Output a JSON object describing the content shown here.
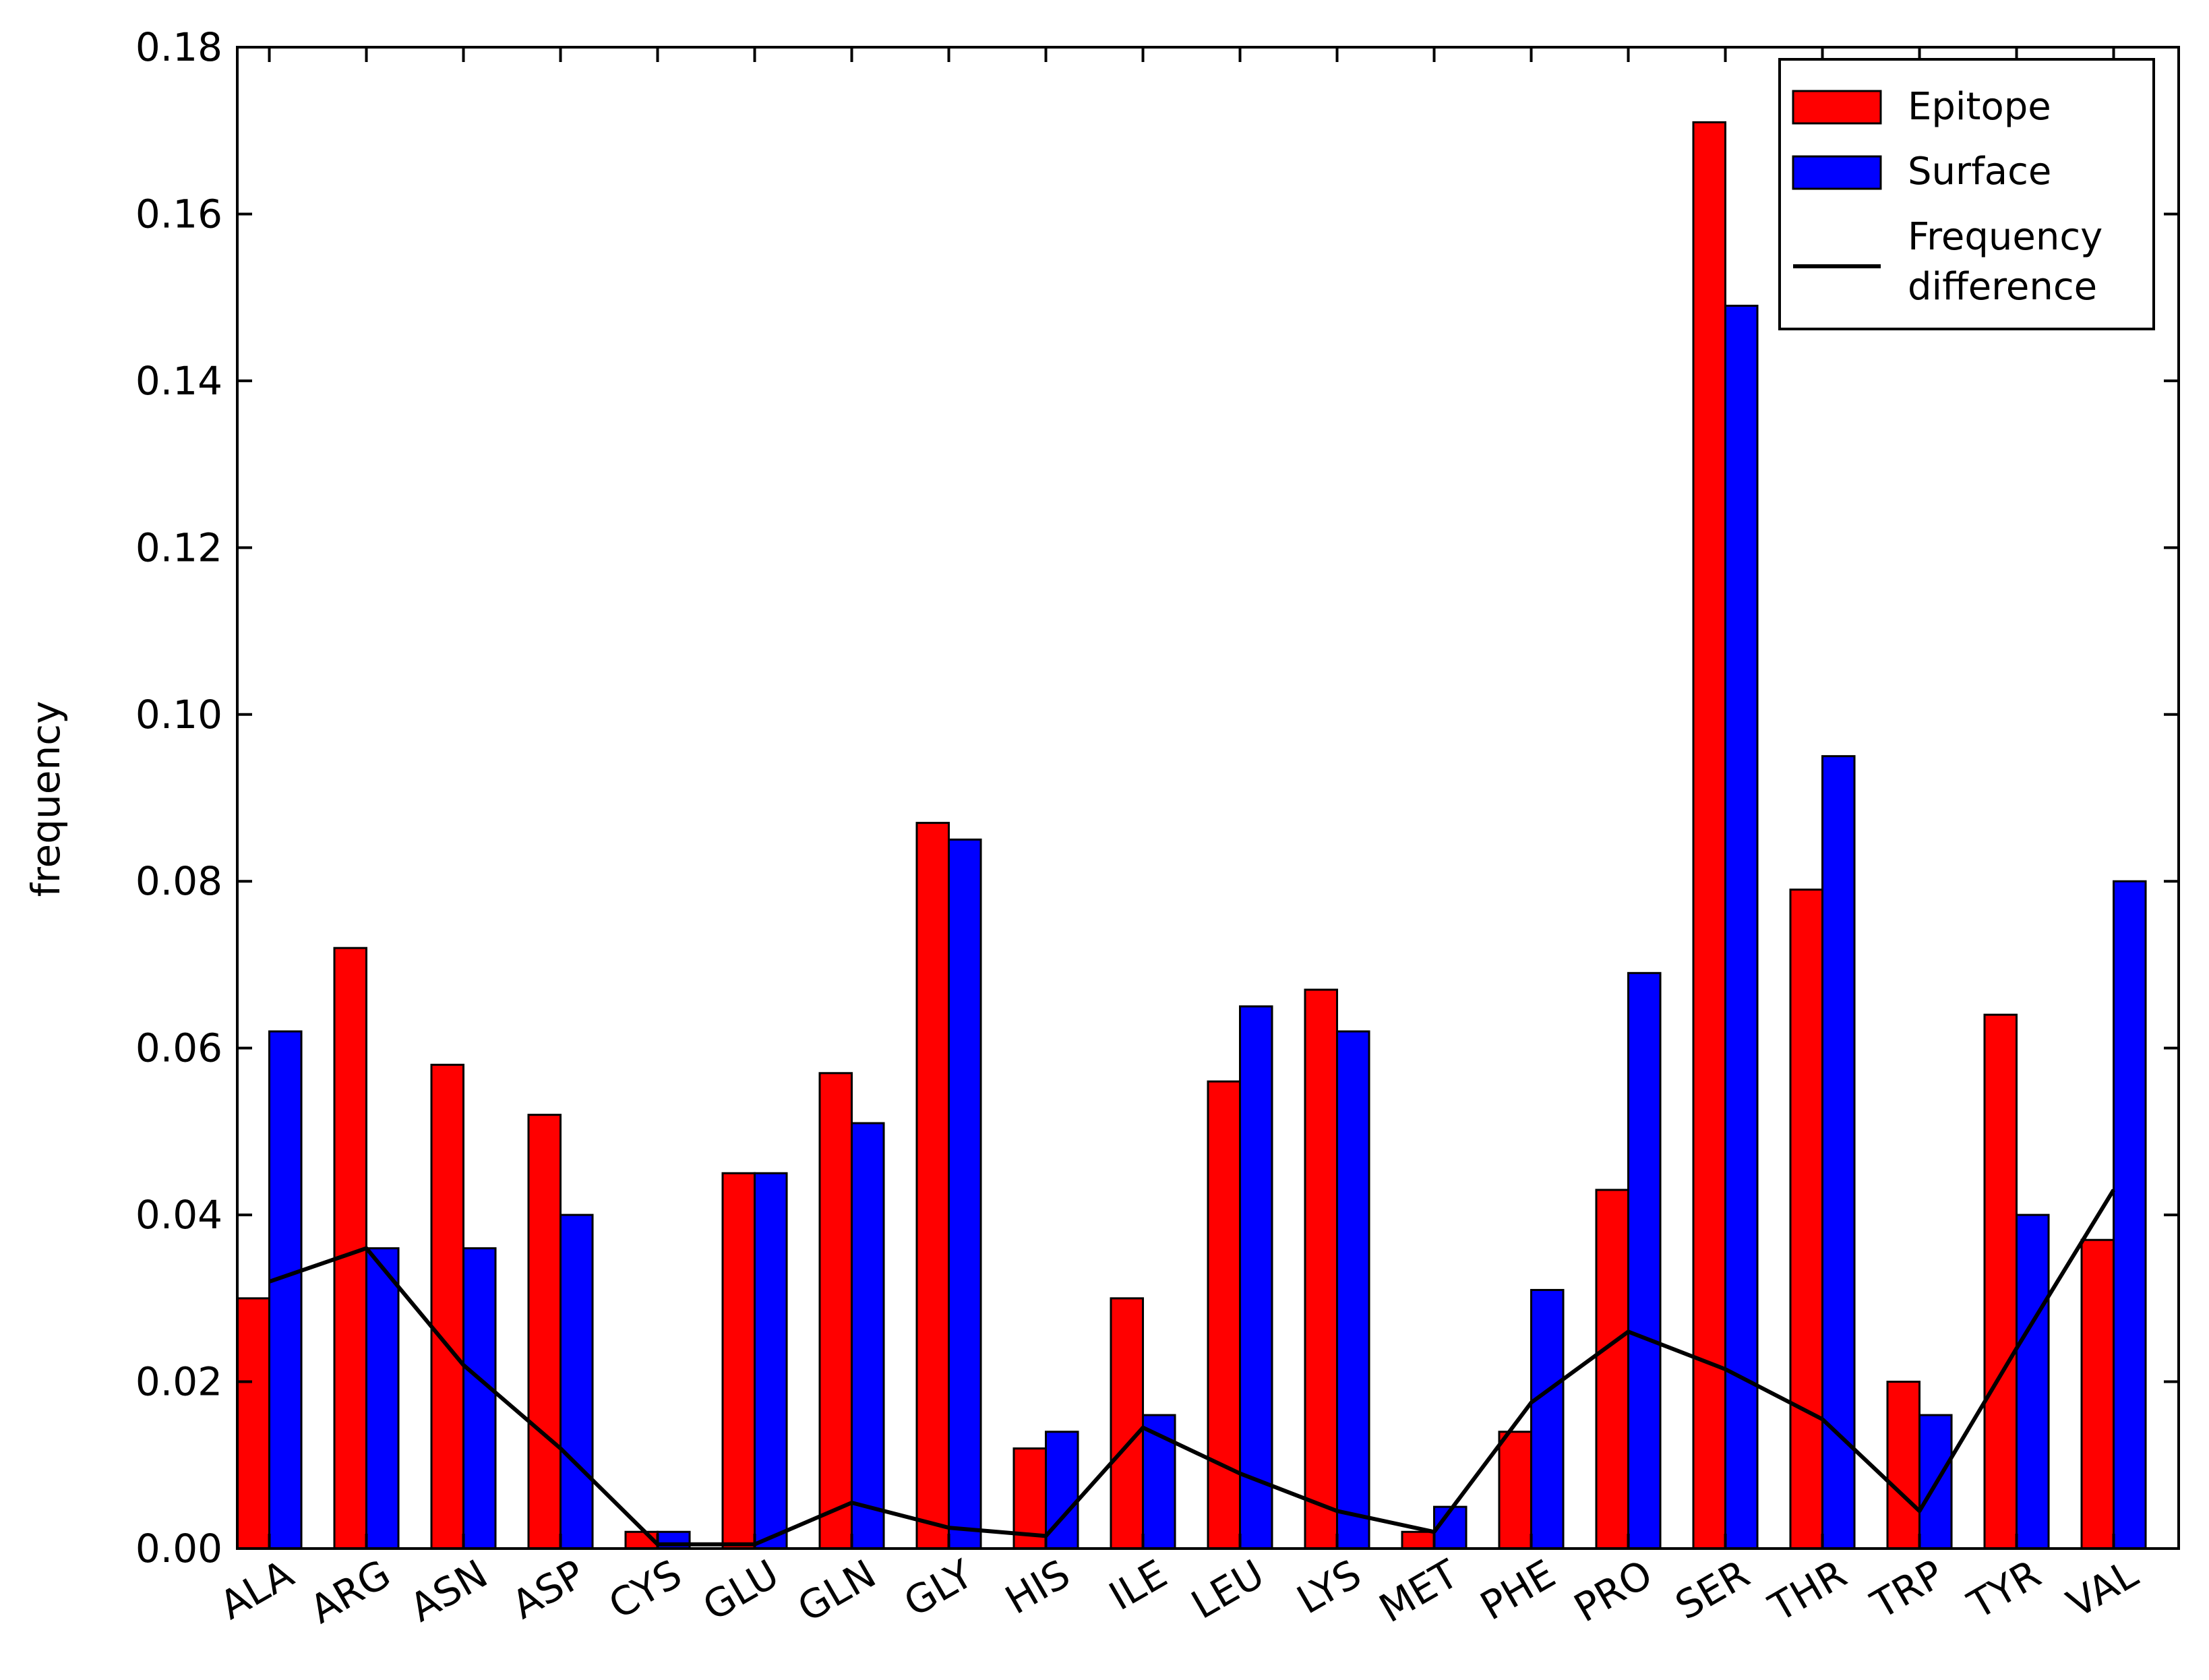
{
  "chart_data": {
    "type": "bar",
    "ylabel": "frequency",
    "xlabel": "",
    "ylim": [
      0,
      0.18
    ],
    "yticks": [
      "0.00",
      "0.02",
      "0.04",
      "0.06",
      "0.08",
      "0.10",
      "0.12",
      "0.14",
      "0.16",
      "0.18"
    ],
    "categories": [
      "ALA",
      "ARG",
      "ASN",
      "ASP",
      "CYS",
      "GLU",
      "GLN",
      "GLY",
      "HIS",
      "ILE",
      "LEU",
      "LYS",
      "MET",
      "PHE",
      "PRO",
      "SER",
      "THR",
      "TRP",
      "TYR",
      "VAL"
    ],
    "series": [
      {
        "name": "Epitope",
        "kind": "bar",
        "color": "#ff0000",
        "values": [
          0.03,
          0.072,
          0.058,
          0.052,
          0.002,
          0.045,
          0.057,
          0.087,
          0.012,
          0.03,
          0.056,
          0.067,
          0.002,
          0.014,
          0.043,
          0.171,
          0.079,
          0.02,
          0.064,
          0.037
        ]
      },
      {
        "name": "Surface",
        "kind": "bar",
        "color": "#0000ff",
        "values": [
          0.062,
          0.036,
          0.036,
          0.04,
          0.002,
          0.045,
          0.051,
          0.085,
          0.014,
          0.016,
          0.065,
          0.062,
          0.005,
          0.031,
          0.069,
          0.149,
          0.095,
          0.016,
          0.04,
          0.08
        ]
      },
      {
        "name": "Frequency difference",
        "kind": "line",
        "color": "#000000",
        "values": [
          0.032,
          0.036,
          0.022,
          0.012,
          0.0005,
          0.0005,
          0.0055,
          0.0025,
          0.0015,
          0.0145,
          0.009,
          0.0045,
          0.002,
          0.0175,
          0.026,
          0.0215,
          0.0155,
          0.0045,
          0.024,
          0.043
        ]
      }
    ],
    "legend": {
      "position": "top-right",
      "entries": [
        "Epitope",
        "Surface",
        "Frequency difference"
      ]
    }
  }
}
